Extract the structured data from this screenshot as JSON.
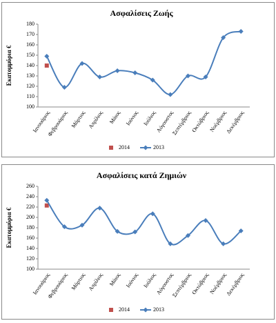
{
  "chart_data": [
    {
      "type": "line",
      "title": "Ασφαλίσεις Ζωής",
      "y_label": "Εκατομμύρια €",
      "categories": [
        "Ιανουάριος",
        "Φεβρουάριος",
        "Μάρτιος",
        "Απρίλιος",
        "Μάιος",
        "Ιούνιος",
        "Ιούλιος",
        "Αύγουστος",
        "Σεπτέμβριος",
        "Οκτώβριος",
        "Νοέμβριος",
        "Δεκέμβριος"
      ],
      "series": [
        {
          "name": "2014",
          "color": "#c0504d",
          "marker": "square",
          "values": [
            140,
            null,
            null,
            null,
            null,
            null,
            null,
            null,
            null,
            null,
            null,
            null
          ]
        },
        {
          "name": "2013",
          "color": "#4a7ebb",
          "marker": "diamond",
          "values": [
            149,
            119,
            142,
            129,
            135,
            133,
            126,
            112,
            130,
            129,
            167,
            173
          ]
        }
      ],
      "ylim": [
        100,
        180
      ],
      "yticks": [
        100,
        110,
        120,
        130,
        140,
        150,
        160,
        170,
        180
      ],
      "grid": false,
      "legend": "bottom"
    },
    {
      "type": "line",
      "title": "Ασφαλίσεις κατά Ζημιών",
      "y_label": "Εκατομμύρια €",
      "categories": [
        "Ιανουάριος",
        "Φεβρουάριος",
        "Μάρτιος",
        "Απρίλιος",
        "Μάιος",
        "Ιούνιος",
        "Ιούλιος",
        "Αύγουστος",
        "Σεπτέμβριος",
        "Οκτώβριος",
        "Νοέμβριος",
        "Δεκέμβριος"
      ],
      "series": [
        {
          "name": "2014",
          "color": "#c0504d",
          "marker": "square",
          "values": [
            223,
            null,
            null,
            null,
            null,
            null,
            null,
            null,
            null,
            null,
            null,
            null
          ]
        },
        {
          "name": "2013",
          "color": "#4a7ebb",
          "marker": "diamond",
          "values": [
            233,
            182,
            185,
            218,
            173,
            172,
            207,
            149,
            165,
            194,
            149,
            174
          ]
        }
      ],
      "ylim": [
        100,
        260
      ],
      "yticks": [
        100,
        120,
        140,
        160,
        180,
        200,
        220,
        240,
        260
      ],
      "grid": false,
      "legend": "bottom"
    }
  ]
}
